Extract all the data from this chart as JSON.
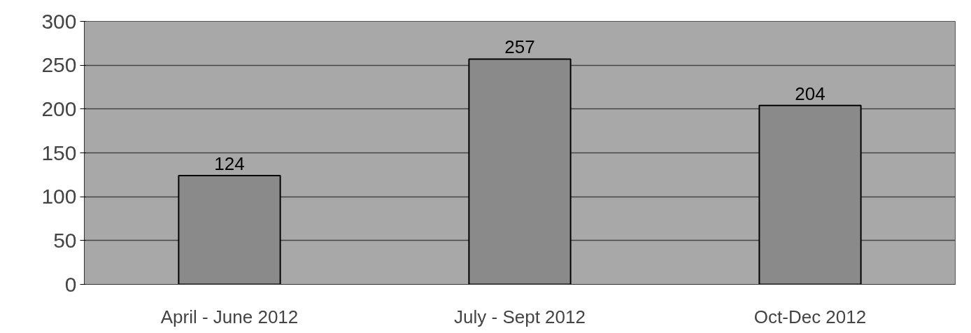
{
  "chart_data": {
    "type": "bar",
    "categories": [
      "April - June 2012",
      "July - Sept 2012",
      "Oct-Dec 2012"
    ],
    "values": [
      124,
      257,
      204
    ],
    "color": "#8a8a8a",
    "ylim": [
      0,
      300
    ],
    "yticks": [
      0,
      50,
      100,
      150,
      200,
      250,
      300
    ],
    "grid": "y",
    "data_labels": true
  }
}
